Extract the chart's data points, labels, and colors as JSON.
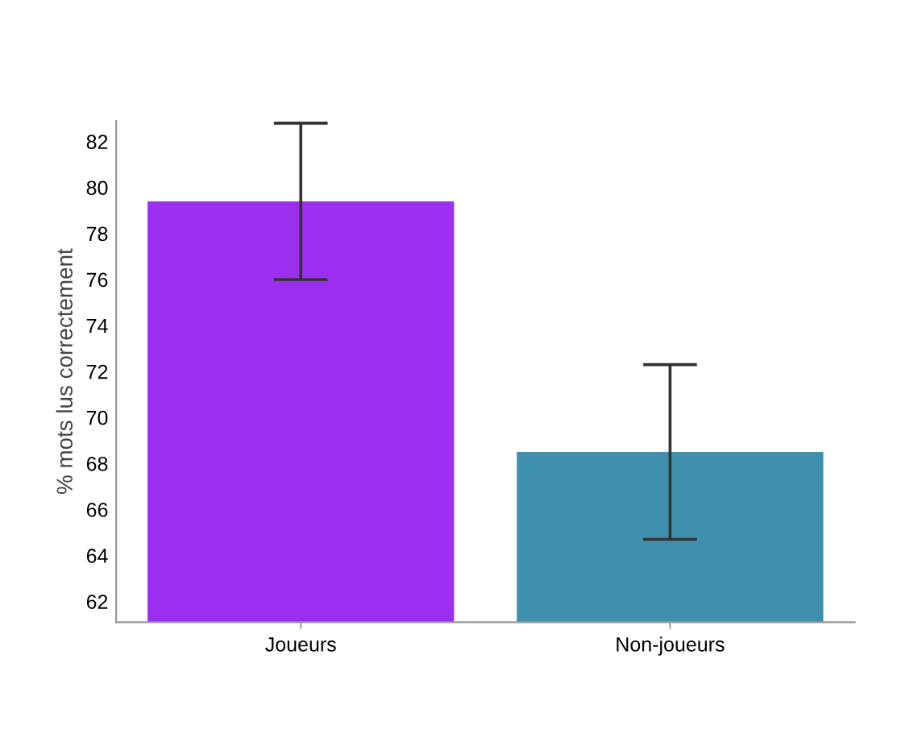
{
  "chart_data": {
    "type": "bar",
    "ylabel": "% mots lus correctement",
    "categories": [
      "Joueurs",
      "Non-joueurs"
    ],
    "values": [
      79.4,
      68.5
    ],
    "colors": [
      "#9b2ff0",
      "#3f90ad"
    ],
    "errors": [
      3.4,
      3.8
    ],
    "ylim": [
      61.1,
      82.9
    ],
    "yticks": [
      62,
      64,
      66,
      68,
      70,
      72,
      74,
      76,
      78,
      80,
      82
    ],
    "grid": false,
    "legend": false
  }
}
